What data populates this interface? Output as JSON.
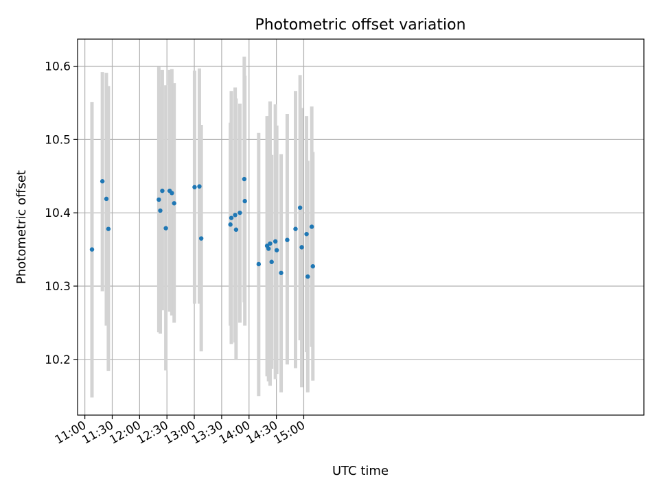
{
  "chart_data": {
    "type": "scatter",
    "title": "Photometric offset variation",
    "xlabel": "UTC time",
    "ylabel": "Photometric offset",
    "xlim_minutes": [
      652,
      1273
    ],
    "ylim": [
      10.124,
      10.637
    ],
    "grid": true,
    "colors": {
      "points": "#1f77b4",
      "errorbars": "#d3d3d3",
      "grid": "#b0b0b0"
    },
    "x_ticks": [
      {
        "minutes": 660,
        "label": "11:00"
      },
      {
        "minutes": 690,
        "label": "11:30"
      },
      {
        "minutes": 720,
        "label": "12:00"
      },
      {
        "minutes": 750,
        "label": "12:30"
      },
      {
        "minutes": 780,
        "label": "13:00"
      },
      {
        "minutes": 810,
        "label": "13:30"
      },
      {
        "minutes": 840,
        "label": "14:00"
      },
      {
        "minutes": 870,
        "label": "14:30"
      },
      {
        "minutes": 900,
        "label": "15:00"
      }
    ],
    "y_ticks": [
      {
        "value": 10.2,
        "label": "10.2"
      },
      {
        "value": 10.3,
        "label": "10.3"
      },
      {
        "value": 10.4,
        "label": "10.4"
      },
      {
        "value": 10.5,
        "label": "10.5"
      },
      {
        "value": 10.6,
        "label": "10.6"
      }
    ],
    "points": [
      {
        "t": "11:07.8",
        "minutes": 667.8,
        "y": 10.35,
        "lo": 10.148,
        "hi": 10.551
      },
      {
        "t": "11:19.2",
        "minutes": 679.2,
        "y": 10.443,
        "lo": 10.293,
        "hi": 10.592
      },
      {
        "t": "11:23.6",
        "minutes": 683.6,
        "y": 10.419,
        "lo": 10.246,
        "hi": 10.591
      },
      {
        "t": "11:25.8",
        "minutes": 685.8,
        "y": 10.378,
        "lo": 10.184,
        "hi": 10.573
      },
      {
        "t": "12:21.1",
        "minutes": 741.1,
        "y": 10.418,
        "lo": 10.237,
        "hi": 10.599
      },
      {
        "t": "12:22.7",
        "minutes": 742.7,
        "y": 10.403,
        "lo": 10.235,
        "hi": 10.572
      },
      {
        "t": "12:24.9",
        "minutes": 744.9,
        "y": 10.43,
        "lo": 10.267,
        "hi": 10.595
      },
      {
        "t": "12:28.8",
        "minutes": 748.8,
        "y": 10.379,
        "lo": 10.185,
        "hi": 10.574
      },
      {
        "t": "12:33.0",
        "minutes": 753.0,
        "y": 10.43,
        "lo": 10.265,
        "hi": 10.595
      },
      {
        "t": "12:35.4",
        "minutes": 755.4,
        "y": 10.427,
        "lo": 10.26,
        "hi": 10.596
      },
      {
        "t": "12:37.9",
        "minutes": 757.9,
        "y": 10.413,
        "lo": 10.25,
        "hi": 10.577
      },
      {
        "t": "13:00.3",
        "minutes": 780.3,
        "y": 10.435,
        "lo": 10.276,
        "hi": 10.594
      },
      {
        "t": "13:05.6",
        "minutes": 785.6,
        "y": 10.436,
        "lo": 10.276,
        "hi": 10.597
      },
      {
        "t": "13:07.6",
        "minutes": 787.6,
        "y": 10.365,
        "lo": 10.211,
        "hi": 10.52
      },
      {
        "t": "13:39.6",
        "minutes": 819.6,
        "y": 10.384,
        "lo": 10.246,
        "hi": 10.523
      },
      {
        "t": "13:40.6",
        "minutes": 820.6,
        "y": 10.393,
        "lo": 10.221,
        "hi": 10.566
      },
      {
        "t": "13:44.8",
        "minutes": 824.8,
        "y": 10.397,
        "lo": 10.223,
        "hi": 10.571
      },
      {
        "t": "13:45.8",
        "minutes": 825.8,
        "y": 10.377,
        "lo": 10.199,
        "hi": 10.556
      },
      {
        "t": "13:50.0",
        "minutes": 830.0,
        "y": 10.4,
        "lo": 10.25,
        "hi": 10.549
      },
      {
        "t": "13:54.8",
        "minutes": 834.8,
        "y": 10.446,
        "lo": 10.278,
        "hi": 10.613
      },
      {
        "t": "13:55.4",
        "minutes": 835.4,
        "y": 10.416,
        "lo": 10.246,
        "hi": 10.587
      },
      {
        "t": "14:10.6",
        "minutes": 850.6,
        "y": 10.33,
        "lo": 10.15,
        "hi": 10.509
      },
      {
        "t": "14:19.8",
        "minutes": 859.8,
        "y": 10.355,
        "lo": 10.177,
        "hi": 10.532
      },
      {
        "t": "14:21.4",
        "minutes": 861.4,
        "y": 10.351,
        "lo": 10.17,
        "hi": 10.532
      },
      {
        "t": "14:23.1",
        "minutes": 863.1,
        "y": 10.358,
        "lo": 10.164,
        "hi": 10.552
      },
      {
        "t": "14:24.8",
        "minutes": 864.8,
        "y": 10.333,
        "lo": 10.187,
        "hi": 10.479
      },
      {
        "t": "14:28.9",
        "minutes": 868.9,
        "y": 10.361,
        "lo": 10.173,
        "hi": 10.548
      },
      {
        "t": "14:30.4",
        "minutes": 870.4,
        "y": 10.349,
        "lo": 10.18,
        "hi": 10.519
      },
      {
        "t": "14:35.2",
        "minutes": 875.2,
        "y": 10.318,
        "lo": 10.155,
        "hi": 10.48
      },
      {
        "t": "14:41.9",
        "minutes": 881.9,
        "y": 10.363,
        "lo": 10.193,
        "hi": 10.535
      },
      {
        "t": "14:51.0",
        "minutes": 891.0,
        "y": 10.378,
        "lo": 10.188,
        "hi": 10.566
      },
      {
        "t": "14:56.0",
        "minutes": 896.0,
        "y": 10.407,
        "lo": 10.226,
        "hi": 10.588
      },
      {
        "t": "14:57.8",
        "minutes": 897.8,
        "y": 10.353,
        "lo": 10.162,
        "hi": 10.543
      },
      {
        "t": "15:03.1",
        "minutes": 903.1,
        "y": 10.371,
        "lo": 10.21,
        "hi": 10.532
      },
      {
        "t": "15:04.4",
        "minutes": 904.4,
        "y": 10.313,
        "lo": 10.155,
        "hi": 10.471
      },
      {
        "t": "15:08.8",
        "minutes": 908.8,
        "y": 10.381,
        "lo": 10.217,
        "hi": 10.545
      },
      {
        "t": "15:10.0",
        "minutes": 910.0,
        "y": 10.327,
        "lo": 10.171,
        "hi": 10.483
      }
    ]
  }
}
